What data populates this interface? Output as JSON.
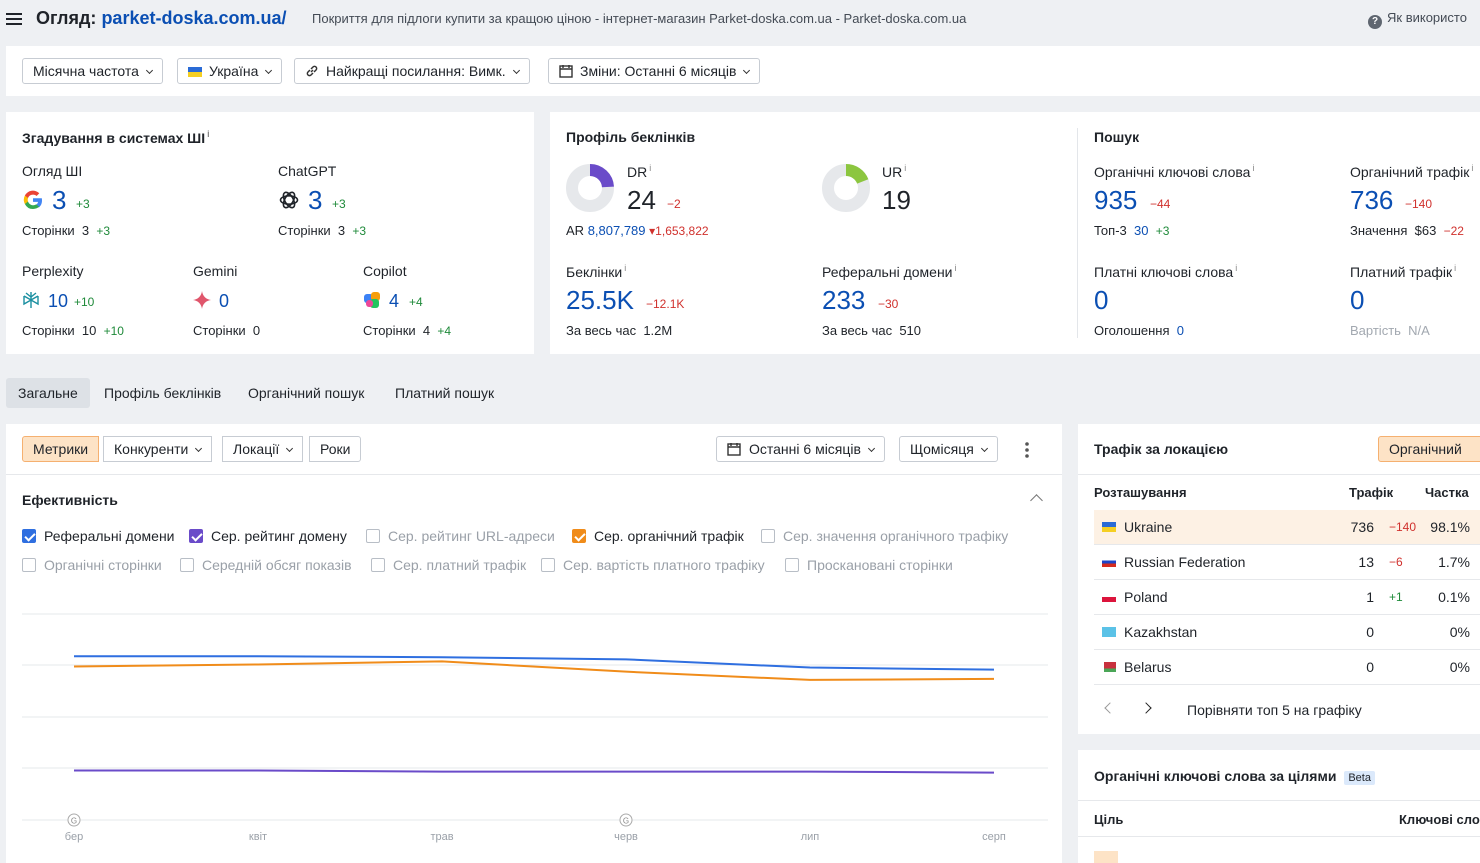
{
  "header": {
    "title_prefix": "Огляд:",
    "domain": "parket-doska.com.ua/",
    "description": "Покриття для підлоги купити за кращою ціною - інтернет-магазин Parket-doska.com.ua - Parket-doska.com.ua",
    "help": "Як використо"
  },
  "filters": {
    "frequency": "Місячна частота",
    "country": "Україна",
    "best_links": "Найкращі посилання: Вимк.",
    "changes": "Зміни: Останні 6 місяців"
  },
  "ai": {
    "title": "Згадування в системах ШІ",
    "items": [
      {
        "name": "Огляд ШІ",
        "value": "3",
        "delta": "+3",
        "pages_label": "Сторінки",
        "pages": "3",
        "pages_delta": "+3",
        "icon": "google-icon"
      },
      {
        "name": "ChatGPT",
        "value": "3",
        "delta": "+3",
        "pages_label": "Сторінки",
        "pages": "3",
        "pages_delta": "+3",
        "icon": "chatgpt-icon"
      },
      {
        "name": "Perplexity",
        "value": "10",
        "delta": "+10",
        "pages_label": "Сторінки",
        "pages": "10",
        "pages_delta": "+10",
        "icon": "perplexity-icon"
      },
      {
        "name": "Gemini",
        "value": "0",
        "delta": "",
        "pages_label": "Сторінки",
        "pages": "0",
        "pages_delta": "",
        "icon": "gemini-icon"
      },
      {
        "name": "Copilot",
        "value": "4",
        "delta": "+4",
        "pages_label": "Сторінки",
        "pages": "4",
        "pages_delta": "+4",
        "icon": "copilot-icon"
      }
    ]
  },
  "backlinks": {
    "title": "Профіль беклінків",
    "dr": {
      "label": "DR",
      "value": "24",
      "delta": "−2",
      "ring_fraction": 0.24
    },
    "ar": {
      "label": "AR",
      "value": "8,807,789",
      "delta": "▾1,653,822"
    },
    "ur": {
      "label": "UR",
      "value": "19",
      "ring_fraction": 0.19
    },
    "backlinks": {
      "label": "Беклінки",
      "value": "25.5K",
      "delta": "−12.1K",
      "all_label": "За весь час",
      "all": "1.2M"
    },
    "ref_domains": {
      "label": "Реферальні домени",
      "value": "233",
      "delta": "−30",
      "all_label": "За весь час",
      "all": "510"
    }
  },
  "search": {
    "title": "Пошук",
    "org_kw": {
      "label": "Органічні ключові слова",
      "value": "935",
      "delta": "−44",
      "sub_label": "Топ-3",
      "sub": "30",
      "sub_delta": "+3"
    },
    "org_traffic": {
      "label": "Органічний трафік",
      "value": "736",
      "delta": "−140",
      "sub_label": "Значення",
      "sub": "$63",
      "sub_delta": "−22"
    },
    "paid_kw": {
      "label": "Платні ключові слова",
      "value": "0",
      "sub_label": "Оголошення",
      "sub": "0"
    },
    "paid_traffic": {
      "label": "Платний трафік",
      "value": "0",
      "sub_label": "Вартість",
      "sub": "N/A"
    }
  },
  "tabs": [
    "Загальне",
    "Профіль беклінків",
    "Органічний пошук",
    "Платний пошук"
  ],
  "chart_toolbar": {
    "segments": [
      "Метрики",
      "Конкуренти",
      "Локації",
      "Роки"
    ],
    "period": "Останні 6 місяців",
    "interval": "Щомісяця"
  },
  "efficiency": {
    "title": "Ефективність",
    "checkboxes": [
      {
        "label": "Реферальні домени",
        "checked": true,
        "color": "#2f6fe0"
      },
      {
        "label": "Сер. рейтинг домену",
        "checked": true,
        "color": "#6a4bc9"
      },
      {
        "label": "Сер. рейтинг URL-адреси",
        "checked": false
      },
      {
        "label": "Сер. органічний трафік",
        "checked": true,
        "color": "#f08c1a"
      },
      {
        "label": "Сер. значення органічного трафіку",
        "checked": false
      },
      {
        "label": "Органічні сторінки",
        "checked": false
      },
      {
        "label": "Середній обсяг показів",
        "checked": false
      },
      {
        "label": "Сер. платний трафік",
        "checked": false
      },
      {
        "label": "Сер. вартість платного трафіку",
        "checked": false
      },
      {
        "label": "Проскановані сторінки",
        "checked": false
      }
    ]
  },
  "chart_data": {
    "type": "line",
    "x": [
      "бер",
      "квіт",
      "трав",
      "черв",
      "лип",
      "серп"
    ],
    "series": [
      {
        "name": "Реферальні домени",
        "color": "#2f6fe0",
        "values": [
          0.795,
          0.795,
          0.79,
          0.78,
          0.74,
          0.73
        ]
      },
      {
        "name": "Сер. органічний трафік",
        "color": "#f08c1a",
        "values": [
          0.745,
          0.755,
          0.77,
          0.72,
          0.68,
          0.685
        ]
      },
      {
        "name": "Сер. рейтинг домену",
        "color": "#6a4bc9",
        "values": [
          0.24,
          0.24,
          0.235,
          0.235,
          0.235,
          0.23
        ]
      }
    ],
    "google_markers": [
      "бер",
      "черв"
    ],
    "grid": true
  },
  "locations": {
    "title": "Трафік за локацією",
    "button": "Органічний",
    "cols": [
      "Розташування",
      "Трафік",
      "Частка"
    ],
    "rows": [
      {
        "country": "Ukraine",
        "traffic": "736",
        "delta": "−140",
        "delta_type": "neg",
        "share": "98.1%",
        "flag": "ua"
      },
      {
        "country": "Russian Federation",
        "traffic": "13",
        "delta": "−6",
        "delta_type": "neg",
        "share": "1.7%",
        "flag": "ru"
      },
      {
        "country": "Poland",
        "traffic": "1",
        "delta": "+1",
        "delta_type": "pos",
        "share": "0.1%",
        "flag": "pl"
      },
      {
        "country": "Kazakhstan",
        "traffic": "0",
        "delta": "",
        "delta_type": "",
        "share": "0%",
        "flag": "kz"
      },
      {
        "country": "Belarus",
        "traffic": "0",
        "delta": "",
        "delta_type": "",
        "share": "0%",
        "flag": "by"
      }
    ],
    "compare": "Порівняти топ 5 на графіку"
  },
  "intents": {
    "title": "Органічні ключові слова за цілями",
    "badge": "Beta",
    "col_goal": "Ціль",
    "col_kw": "Ключові сло"
  }
}
